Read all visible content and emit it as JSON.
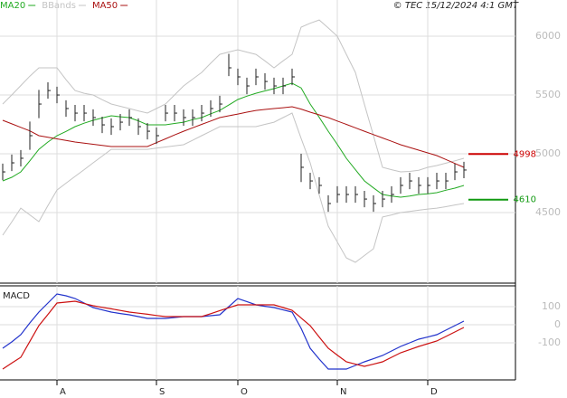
{
  "chart_data": [
    {
      "type": "ohlc",
      "attribution": "© TEC 15/12/2024 4:1 GMT",
      "ylim": [
        3900,
        6308
      ],
      "yticks": [
        4500,
        5000,
        5500,
        6000
      ],
      "grid": true,
      "bar_color": "#222222",
      "high": [
        4916,
        4993,
        5032,
        5274,
        5543,
        5608,
        5570,
        5455,
        5416,
        5416,
        5378,
        5316,
        5301,
        5339,
        5378,
        5301,
        5262,
        5224,
        5416,
        5416,
        5378,
        5378,
        5416,
        5455,
        5493,
        5850,
        5724,
        5647,
        5724,
        5685,
        5647,
        5647,
        5724,
        5000,
        4839,
        4801,
        4647,
        4724,
        4724,
        4724,
        4685,
        4647,
        4685,
        4724,
        4801,
        4839,
        4801,
        4801,
        4839,
        4839,
        4916,
        4932
      ],
      "low": [
        4776,
        4853,
        4892,
        5034,
        5303,
        5468,
        5430,
        5315,
        5276,
        5276,
        5238,
        5176,
        5161,
        5199,
        5238,
        5161,
        5122,
        5084,
        5276,
        5276,
        5238,
        5238,
        5276,
        5315,
        5353,
        5661,
        5584,
        5507,
        5584,
        5545,
        5507,
        5507,
        5584,
        4760,
        4699,
        4661,
        4507,
        4584,
        4584,
        4584,
        4545,
        4507,
        4545,
        4584,
        4661,
        4699,
        4661,
        4661,
        4699,
        4699,
        4776,
        4792
      ],
      "close": [
        4846,
        4923,
        4962,
        5154,
        5423,
        5538,
        5500,
        5385,
        5346,
        5346,
        5308,
        5246,
        5231,
        5269,
        5308,
        5231,
        5192,
        5154,
        5346,
        5346,
        5308,
        5308,
        5346,
        5385,
        5423,
        5731,
        5654,
        5577,
        5654,
        5615,
        5577,
        5577,
        5654,
        4885,
        4769,
        4731,
        4577,
        4654,
        4654,
        4654,
        4615,
        4577,
        4615,
        4654,
        4731,
        4769,
        4731,
        4731,
        4769,
        4769,
        4846,
        4862
      ],
      "series": [
        {
          "name": "MA20",
          "color": "#22aa22",
          "values": [
            4769,
            4800,
            4846,
            4940,
            5038,
            5100,
            5154,
            5190,
            5231,
            5260,
            5285,
            5305,
            5323,
            5315,
            5308,
            5280,
            5246,
            5246,
            5246,
            5258,
            5269,
            5290,
            5308,
            5340,
            5369,
            5415,
            5462,
            5490,
            5515,
            5535,
            5554,
            5577,
            5600,
            5560,
            5423,
            5310,
            5192,
            5080,
            4962,
            4865,
            4769,
            4710,
            4654,
            4640,
            4631,
            4640,
            4654,
            4660,
            4669,
            4690,
            4708,
            4731
          ]
        },
        {
          "name": "BBands",
          "color": "#c4c4c4",
          "upper": [
            5423,
            5500,
            5580,
            5660,
            5731,
            5731,
            5731,
            5630,
            5538,
            5515,
            5500,
            5460,
            5423,
            5404,
            5385,
            5365,
            5346,
            5385,
            5423,
            5500,
            5577,
            5635,
            5692,
            5770,
            5846,
            5866,
            5885,
            5865,
            5846,
            5790,
            5731,
            5790,
            5846,
            6077,
            6110,
            6138,
            6070,
            6000,
            5846,
            5692,
            5420,
            5154,
            4885,
            4865,
            4846,
            4850,
            4860,
            4885,
            4900,
            4920,
            4940,
            4962
          ],
          "lower": [
            4308,
            4420,
            4538,
            4480,
            4423,
            4560,
            4692,
            4750,
            4808,
            4865,
            4923,
            4980,
            5038,
            5038,
            5038,
            5038,
            5038,
            5048,
            5058,
            5068,
            5077,
            5115,
            5154,
            5192,
            5231,
            5231,
            5231,
            5231,
            5231,
            5250,
            5269,
            5308,
            5346,
            5130,
            4923,
            4650,
            4385,
            4250,
            4115,
            4077,
            4135,
            4192,
            4462,
            4480,
            4500,
            4510,
            4520,
            4530,
            4538,
            4550,
            4565,
            4577
          ]
        },
        {
          "name": "MA50",
          "color": "#aa1111",
          "values": [
            5285,
            5255,
            5225,
            5195,
            5154,
            5140,
            5127,
            5113,
            5100,
            5090,
            5081,
            5071,
            5062,
            5062,
            5062,
            5062,
            5062,
            5095,
            5127,
            5160,
            5192,
            5221,
            5250,
            5279,
            5308,
            5323,
            5338,
            5354,
            5369,
            5377,
            5385,
            5392,
            5400,
            5380,
            5354,
            5331,
            5308,
            5279,
            5250,
            5221,
            5192,
            5163,
            5135,
            5106,
            5077,
            5054,
            5031,
            5008,
            4985,
            4952,
            4918,
            4885
          ]
        }
      ],
      "levels": [
        {
          "value": 4998,
          "color": "#cc0000"
        },
        {
          "value": 4610,
          "color": "#119911"
        }
      ]
    },
    {
      "type": "line",
      "title": "MACD",
      "ylim": [
        -305,
        215
      ],
      "yticks": [
        -100,
        0,
        100
      ],
      "grid": true,
      "categories": [
        null,
        null,
        null,
        null,
        null,
        null,
        "A",
        null,
        null,
        null,
        null,
        null,
        null,
        null,
        null,
        null,
        null,
        "S",
        null,
        null,
        null,
        null,
        null,
        null,
        null,
        null,
        "O",
        null,
        null,
        null,
        null,
        null,
        null,
        null,
        null,
        null,
        null,
        "N",
        null,
        null,
        null,
        null,
        null,
        null,
        null,
        null,
        null,
        "D",
        null,
        null,
        null,
        null
      ],
      "series": [
        {
          "color": "#2233cc",
          "values": [
            -130,
            -95,
            -55,
            10,
            70,
            120,
            170,
            160,
            145,
            120,
            95,
            82,
            70,
            62,
            55,
            45,
            35,
            35,
            35,
            40,
            45,
            45,
            45,
            50,
            55,
            100,
            145,
            128,
            110,
            102,
            95,
            82,
            70,
            -20,
            -130,
            -190,
            -245,
            -245,
            -245,
            -225,
            -205,
            -188,
            -170,
            -145,
            -120,
            -100,
            -80,
            -68,
            -55,
            -30,
            -5,
            20
          ]
        },
        {
          "color": "#cc1111",
          "values": [
            -245,
            -212,
            -180,
            -92,
            -5,
            57,
            120,
            125,
            130,
            117,
            105,
            96,
            88,
            79,
            70,
            64,
            58,
            51,
            45,
            45,
            45,
            45,
            45,
            61,
            78,
            94,
            110,
            110,
            110,
            110,
            110,
            95,
            80,
            37,
            -5,
            -68,
            -130,
            -168,
            -205,
            -218,
            -230,
            -218,
            -205,
            -180,
            -155,
            -138,
            -120,
            -105,
            -90,
            -65,
            -40,
            -15
          ]
        }
      ]
    }
  ]
}
